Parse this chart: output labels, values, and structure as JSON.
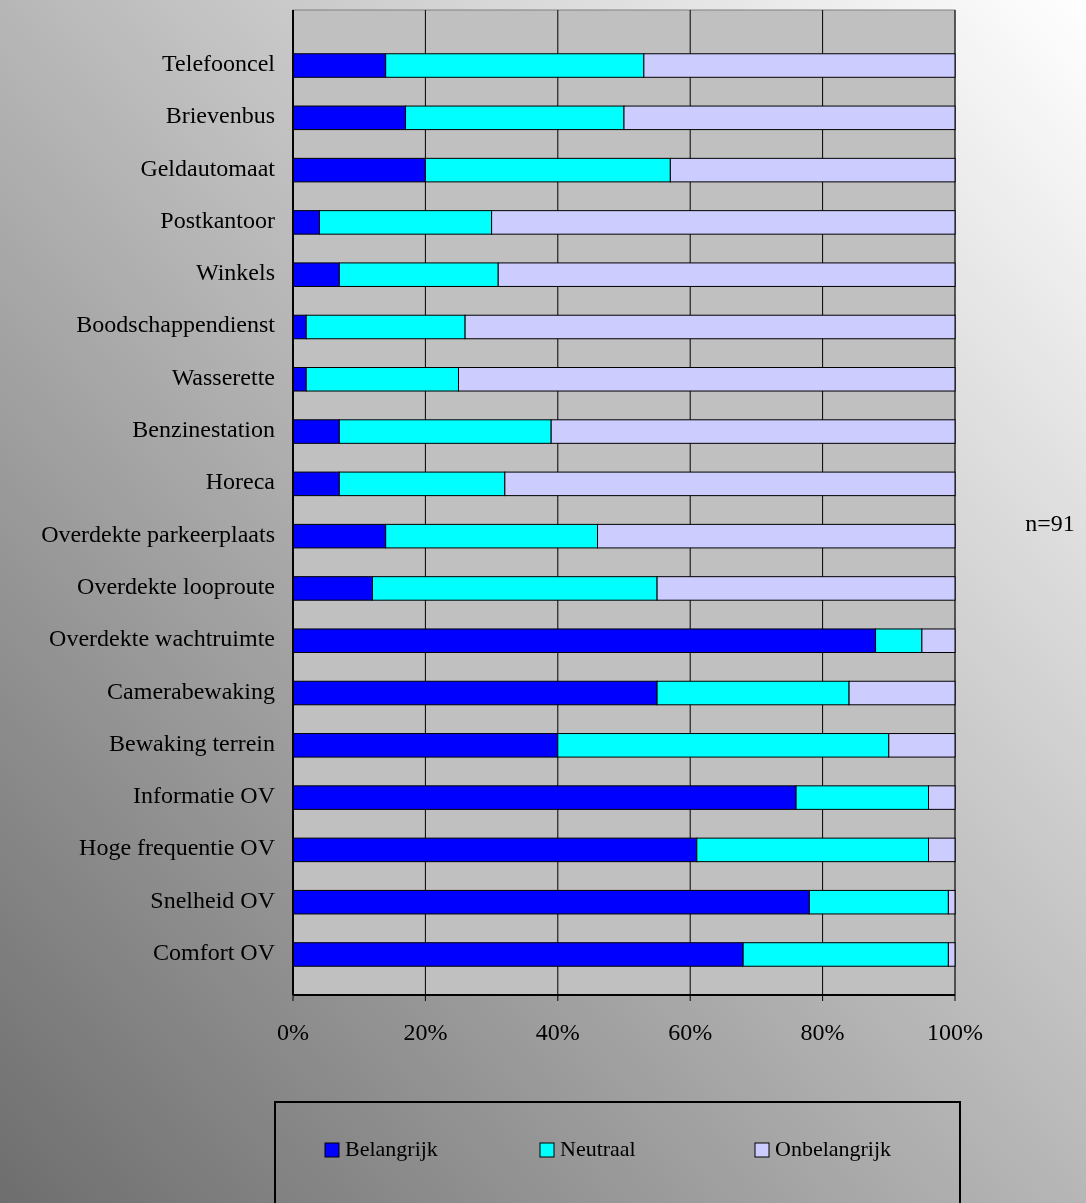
{
  "chart_data": {
    "type": "bar",
    "orientation": "horizontal",
    "stacked": true,
    "categories": [
      "Telefooncel",
      "Brievenbus",
      "Geldautomaat",
      "Postkantoor",
      "Winkels",
      "Boodschappendienst",
      "Wasserette",
      "Benzinestation",
      "Horeca",
      "Overdekte parkeerplaats",
      "Overdekte looproute",
      "Overdekte wachtruimte",
      "Camerabewaking",
      "Bewaking terrein",
      "Informatie OV",
      "Hoge frequentie OV",
      "Snelheid OV",
      "Comfort OV"
    ],
    "series": [
      {
        "name": "Belangrijk",
        "color": "#0000ff",
        "values": [
          14,
          17,
          20,
          4,
          7,
          2,
          2,
          7,
          7,
          14,
          12,
          88,
          55,
          40,
          76,
          61,
          78,
          68
        ]
      },
      {
        "name": "Neutraal",
        "color": "#00ffff",
        "values": [
          39,
          33,
          37,
          26,
          24,
          24,
          23,
          32,
          25,
          32,
          43,
          7,
          29,
          50,
          20,
          35,
          21,
          31
        ]
      },
      {
        "name": "Onbelangrijk",
        "color": "#ccccff",
        "values": [
          47,
          50,
          43,
          70,
          69,
          74,
          75,
          61,
          68,
          54,
          45,
          5,
          16,
          10,
          4,
          4,
          1,
          1
        ]
      }
    ],
    "xlim": [
      0,
      100
    ],
    "xticks": [
      {
        "value": 0,
        "label": "0%"
      },
      {
        "value": 20,
        "label": "20%"
      },
      {
        "value": 40,
        "label": "40%"
      },
      {
        "value": 60,
        "label": "60%"
      },
      {
        "value": 80,
        "label": "80%"
      },
      {
        "value": 100,
        "label": "100%"
      }
    ],
    "grid": "x",
    "legend": "bottom",
    "annotations": [
      "n=91"
    ]
  }
}
